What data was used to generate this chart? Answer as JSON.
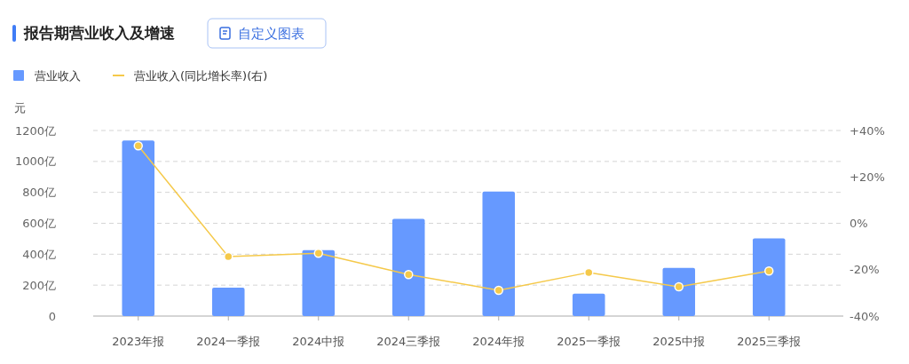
{
  "chart_data": {
    "type": "bar",
    "title": "报告期营业收入及增速",
    "annotations": [
      "自定义图表"
    ],
    "ylabel": "元",
    "categories": [
      "2023年报",
      "2024一季报",
      "2024中报",
      "2024三季报",
      "2024年报",
      "2025一季报",
      "2025中报",
      "2025三季报"
    ],
    "series": [
      {
        "name": "营业收入",
        "color": "#6699ff",
        "values": [
          1135,
          184,
          427,
          628,
          805,
          145,
          312,
          502
        ]
      },
      {
        "name": "营业收入(同比增长率)(右)",
        "type": "line",
        "axis": "y2",
        "color": "#f5c94a",
        "marker": "circle",
        "values": [
          33.4,
          -14.4,
          -12.9,
          -22.1,
          -28.9,
          -21.2,
          -27.4,
          -20.6
        ]
      }
    ],
    "ylim": [
      0,
      1200
    ],
    "yticks": [
      {
        "value": 0,
        "label": "0"
      },
      {
        "value": 200,
        "label": "200亿"
      },
      {
        "value": 400,
        "label": "400亿"
      },
      {
        "value": 600,
        "label": "600亿"
      },
      {
        "value": 800,
        "label": "800亿"
      },
      {
        "value": 1000,
        "label": "1000亿"
      },
      {
        "value": 1200,
        "label": "1200亿"
      }
    ],
    "y2lim": [
      -40,
      40
    ],
    "y2ticks": [
      {
        "value": -40,
        "label": "-40%"
      },
      {
        "value": -20,
        "label": "-20%"
      },
      {
        "value": 0,
        "label": "0%"
      },
      {
        "value": 20,
        "label": "+20%"
      },
      {
        "value": 40,
        "label": "+40%"
      }
    ],
    "grid": "y",
    "legend": "top left"
  }
}
